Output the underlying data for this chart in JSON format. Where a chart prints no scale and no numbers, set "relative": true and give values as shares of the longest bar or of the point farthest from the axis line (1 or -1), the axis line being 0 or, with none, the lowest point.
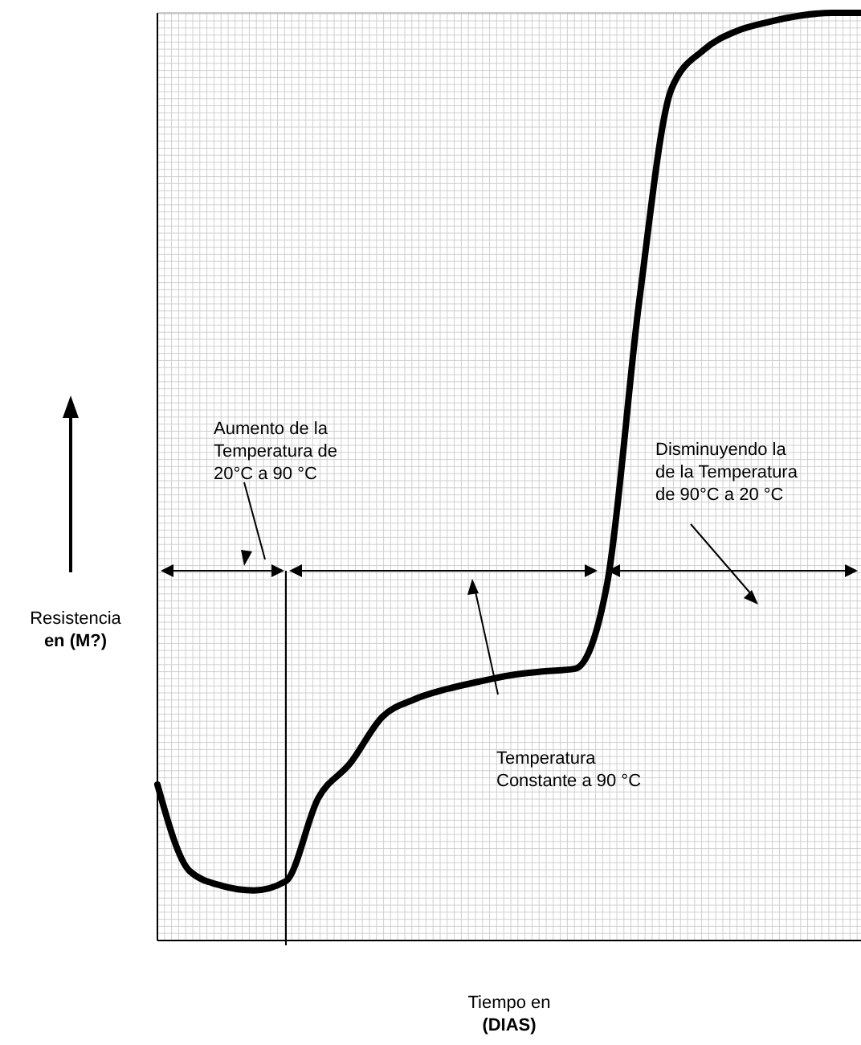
{
  "chart_data": {
    "type": "line",
    "relative": true,
    "grid": true,
    "tick_labels": false,
    "color": "#000000",
    "categories": [
      null,
      null,
      null,
      null,
      null,
      null,
      null,
      null,
      null,
      null,
      null,
      null,
      null,
      null,
      null,
      null,
      null,
      null,
      null,
      null,
      null,
      null,
      null
    ],
    "values": [
      0.168,
      0.075,
      0.059,
      0.054,
      0.064,
      0.153,
      0.191,
      0.241,
      0.26,
      0.271,
      0.279,
      0.286,
      0.29,
      0.293,
      0.385,
      0.69,
      0.918,
      0.96,
      0.98,
      0.99,
      0.997,
      1,
      1
    ],
    "xlabel": "Tiempo en\n(DIAS)",
    "ylabel": "Resistencia\nen (M?)",
    "annotations": [
      "Aumento de la\nTemperatura de\n20°C a 90 °C",
      "Temperatura\nConstante a 90 °C",
      "Disminuyendo la\nde la Temperatura\nde 90°C a 20 °C"
    ]
  }
}
